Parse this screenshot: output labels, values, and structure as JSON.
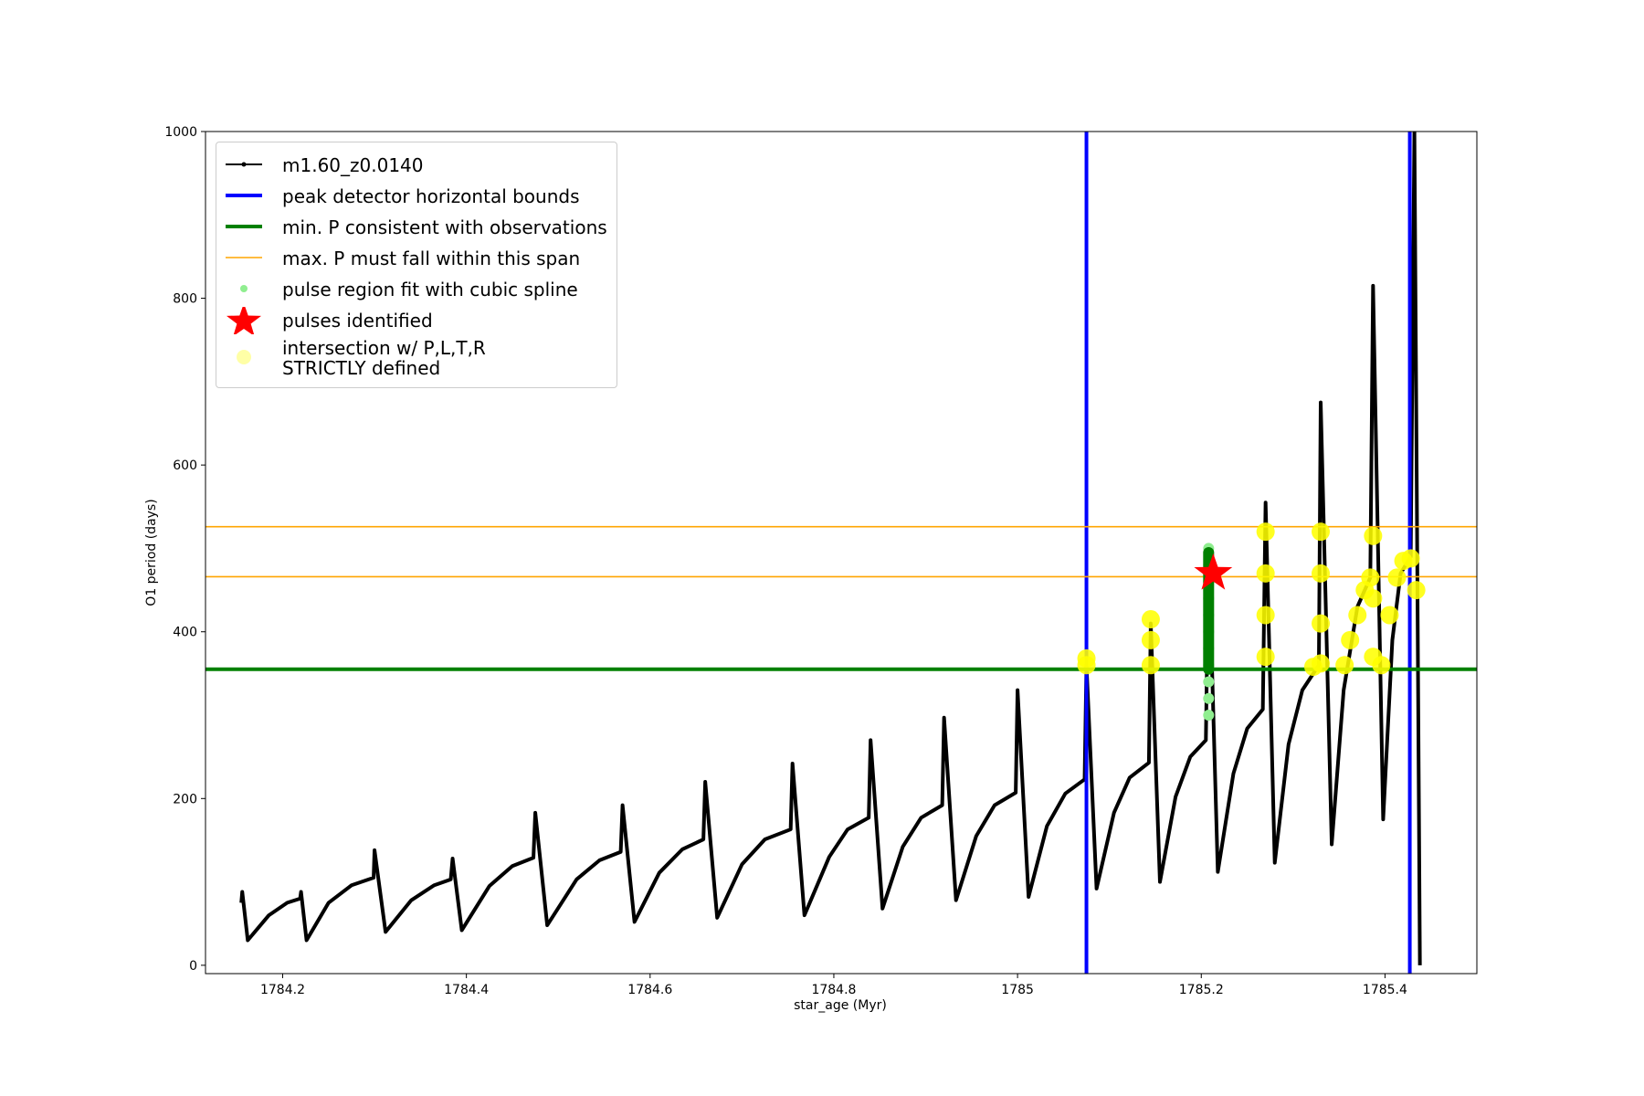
{
  "chart_data": {
    "type": "line",
    "xlabel": "star_age (Myr)",
    "ylabel": "O1 period (days)",
    "xlim": [
      1784.116,
      1785.5
    ],
    "ylim": [
      -10,
      1000
    ],
    "xticks": [
      1784.2,
      1784.4,
      1784.6,
      1784.8,
      1785.0,
      1785.2,
      1785.4
    ],
    "yticks": [
      0,
      200,
      400,
      600,
      800,
      1000
    ],
    "legend": "upper left",
    "series": [
      {
        "name": "m1.60_z0.0140",
        "style": "line",
        "color": "#000000",
        "x": [
          1784.155,
          1784.156,
          1784.162,
          1784.185,
          1784.205,
          1784.219,
          1784.22,
          1784.226,
          1784.25,
          1784.275,
          1784.299,
          1784.3,
          1784.312,
          1784.34,
          1784.365,
          1784.383,
          1784.385,
          1784.395,
          1784.425,
          1784.45,
          1784.473,
          1784.475,
          1784.488,
          1784.52,
          1784.545,
          1784.568,
          1784.57,
          1784.583,
          1784.61,
          1784.635,
          1784.658,
          1784.66,
          1784.673,
          1784.7,
          1784.725,
          1784.753,
          1784.755,
          1784.768,
          1784.795,
          1784.815,
          1784.838,
          1784.84,
          1784.853,
          1784.875,
          1784.895,
          1784.918,
          1784.92,
          1784.933,
          1784.955,
          1784.975,
          1784.998,
          1785.0,
          1785.012,
          1785.032,
          1785.052,
          1785.073,
          1785.075,
          1785.086,
          1785.105,
          1785.122,
          1785.143,
          1785.145,
          1785.155,
          1785.172,
          1785.188,
          1785.205,
          1785.208,
          1785.218,
          1785.235,
          1785.25,
          1785.267,
          1785.27,
          1785.28,
          1785.295,
          1785.31,
          1785.328,
          1785.33,
          1785.342,
          1785.355,
          1785.37,
          1785.384,
          1785.387,
          1785.398,
          1785.408,
          1785.417,
          1785.428,
          1785.432,
          1785.437,
          1785.438
        ],
        "y": [
          75,
          88,
          30,
          60,
          75,
          80,
          88,
          30,
          75,
          96,
          105,
          138,
          40,
          78,
          96,
          103,
          128,
          42,
          95,
          119,
          129,
          183,
          48,
          103,
          126,
          136,
          192,
          52,
          111,
          139,
          151,
          220,
          57,
          121,
          151,
          163,
          242,
          60,
          130,
          163,
          177,
          270,
          68,
          142,
          177,
          192,
          297,
          78,
          155,
          192,
          207,
          330,
          82,
          167,
          206,
          223,
          360,
          92,
          183,
          225,
          243,
          410,
          100,
          202,
          250,
          270,
          500,
          112,
          230,
          284,
          307,
          555,
          123,
          265,
          330,
          360,
          675,
          145,
          330,
          430,
          465,
          815,
          175,
          390,
          470,
          490,
          1000,
          175,
          0
        ]
      },
      {
        "name": "peak detector horizontal bounds",
        "style": "vline",
        "color": "#0000ff",
        "x": [
          1785.075,
          1785.427
        ]
      },
      {
        "name": "min. P consistent with observations",
        "style": "hline",
        "color": "#008000",
        "y": [
          355
        ]
      },
      {
        "name": "max. P must fall within this span",
        "style": "hline-thin",
        "color": "#ffa500",
        "y": [
          466,
          526
        ]
      },
      {
        "name": "pulse region fit with cubic spline",
        "style": "scatter",
        "color": "#90ee90",
        "x": [
          1785.208,
          1785.208,
          1785.208,
          1785.208,
          1785.208,
          1785.208,
          1785.208,
          1785.208,
          1785.208,
          1785.208,
          1785.208
        ],
        "y": [
          300,
          320,
          340,
          360,
          380,
          400,
          420,
          440,
          460,
          480,
          500
        ]
      },
      {
        "style": "bar",
        "color": "#008000",
        "x": [
          1785.208,
          1785.208
        ],
        "y": [
          355,
          495
        ]
      },
      {
        "name": "pulses identified",
        "style": "star",
        "color": "#ff0000",
        "x": [
          1785.213
        ],
        "y": [
          470
        ]
      },
      {
        "name": "intersection w/ P,L,T,R\nSTRICTLY defined",
        "style": "blob",
        "color": "#ffff00",
        "alpha": 0.35,
        "x": [
          1785.075,
          1785.075,
          1785.145,
          1785.145,
          1785.145,
          1785.27,
          1785.27,
          1785.27,
          1785.27,
          1785.322,
          1785.33,
          1785.33,
          1785.33,
          1785.33,
          1785.356,
          1785.362,
          1785.37,
          1785.378,
          1785.384,
          1785.387,
          1785.387,
          1785.387,
          1785.396,
          1785.405,
          1785.413,
          1785.42,
          1785.428,
          1785.434
        ],
        "y": [
          360,
          368,
          360,
          390,
          415,
          370,
          420,
          470,
          520,
          358,
          362,
          410,
          470,
          520,
          360,
          390,
          420,
          450,
          465,
          370,
          440,
          515,
          360,
          420,
          465,
          485,
          488,
          450
        ]
      }
    ]
  }
}
